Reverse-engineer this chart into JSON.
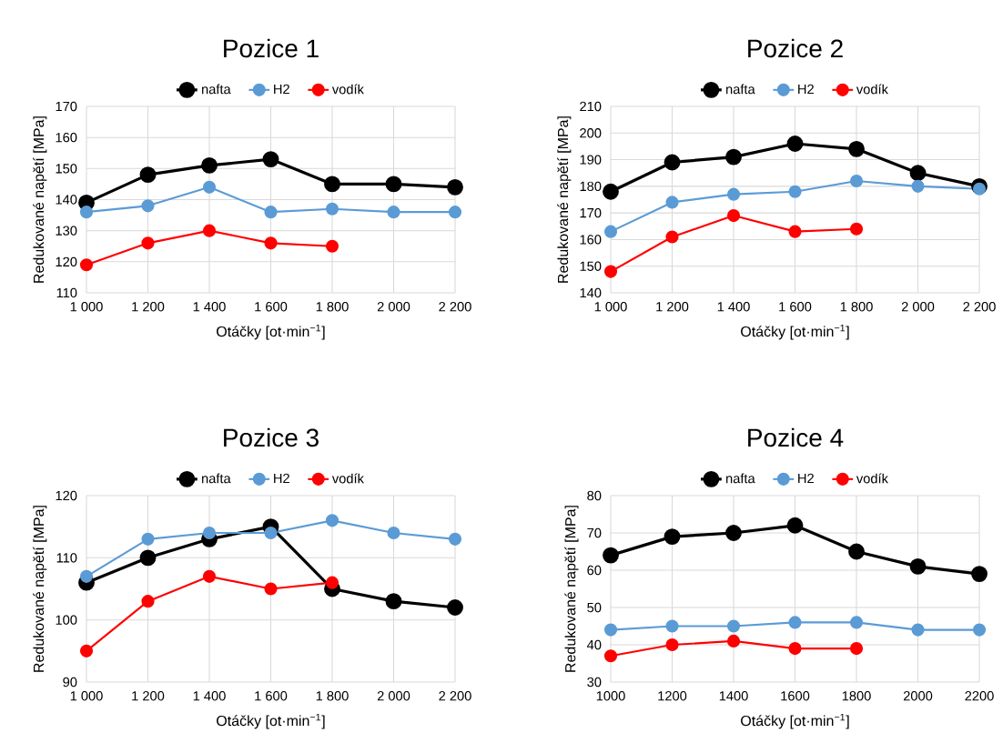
{
  "chart_data": [
    {
      "type": "line",
      "title": "Pozice 1",
      "xlabel": "Otáčky [ot·min$^{−1}$]",
      "ylabel": "Redukované napětí [MPa]",
      "x": [
        1000,
        1200,
        1400,
        1600,
        1800,
        2000,
        2200
      ],
      "xlim": [
        1000,
        2200
      ],
      "xticks": [
        {
          "value": 1000,
          "label": "1 000"
        },
        {
          "value": 1200,
          "label": "1 200"
        },
        {
          "value": 1400,
          "label": "1 400"
        },
        {
          "value": 1600,
          "label": "1 600"
        },
        {
          "value": 1800,
          "label": "1 800"
        },
        {
          "value": 2000,
          "label": "2 000"
        },
        {
          "value": 2200,
          "label": "2 200"
        }
      ],
      "ylim": [
        110,
        170
      ],
      "yticks": [
        110,
        120,
        130,
        140,
        150,
        160,
        170
      ],
      "series": [
        {
          "name": "nafta",
          "color": "#000000",
          "values": [
            139,
            148,
            151,
            153,
            145,
            145,
            144
          ]
        },
        {
          "name": "H2",
          "color": "#5b9bd5",
          "values": [
            136,
            138,
            144,
            136,
            137,
            136,
            136
          ]
        },
        {
          "name": "vodík",
          "color": "#ff0000",
          "values": [
            119,
            126,
            130,
            126,
            125,
            null,
            null
          ]
        }
      ],
      "grid": true,
      "legend": "top",
      "marker": "circle",
      "line_style": "solid"
    },
    {
      "type": "line",
      "title": "Pozice 2",
      "xlabel": "Otáčky [ot·min$^{−1}$]",
      "ylabel": "Redukované napětí [MPa]",
      "x": [
        1000,
        1200,
        1400,
        1600,
        1800,
        2000,
        2200
      ],
      "xlim": [
        1000,
        2200
      ],
      "xticks": [
        {
          "value": 1000,
          "label": "1 000"
        },
        {
          "value": 1200,
          "label": "1 200"
        },
        {
          "value": 1400,
          "label": "1 400"
        },
        {
          "value": 1600,
          "label": "1 600"
        },
        {
          "value": 1800,
          "label": "1 800"
        },
        {
          "value": 2000,
          "label": "2 000"
        },
        {
          "value": 2200,
          "label": "2 200"
        }
      ],
      "ylim": [
        140,
        210
      ],
      "yticks": [
        140,
        150,
        160,
        170,
        180,
        190,
        200,
        210
      ],
      "series": [
        {
          "name": "nafta",
          "color": "#000000",
          "values": [
            178,
            189,
            191,
            196,
            194,
            185,
            180
          ]
        },
        {
          "name": "H2",
          "color": "#5b9bd5",
          "values": [
            163,
            174,
            177,
            178,
            182,
            180,
            179
          ]
        },
        {
          "name": "vodík",
          "color": "#ff0000",
          "values": [
            148,
            161,
            169,
            163,
            164,
            null,
            null
          ]
        }
      ],
      "grid": true,
      "legend": "top",
      "marker": "circle",
      "line_style": "solid"
    },
    {
      "type": "line",
      "title": "Pozice 3",
      "xlabel": "Otáčky [ot·min$^{−1}$]",
      "ylabel": "Redukované napětí [MPa]",
      "x": [
        1000,
        1200,
        1400,
        1600,
        1800,
        2000,
        2200
      ],
      "xlim": [
        1000,
        2200
      ],
      "xticks": [
        {
          "value": 1000,
          "label": "1 000"
        },
        {
          "value": 1200,
          "label": "1 200"
        },
        {
          "value": 1400,
          "label": "1 400"
        },
        {
          "value": 1600,
          "label": "1 600"
        },
        {
          "value": 1800,
          "label": "1 800"
        },
        {
          "value": 2000,
          "label": "2 000"
        },
        {
          "value": 2200,
          "label": "2 200"
        }
      ],
      "ylim": [
        90,
        120
      ],
      "yticks": [
        90,
        100,
        110,
        120
      ],
      "series": [
        {
          "name": "nafta",
          "color": "#000000",
          "values": [
            106,
            110,
            113,
            115,
            105,
            103,
            102
          ]
        },
        {
          "name": "H2",
          "color": "#5b9bd5",
          "values": [
            107,
            113,
            114,
            114,
            116,
            114,
            113
          ]
        },
        {
          "name": "vodík",
          "color": "#ff0000",
          "values": [
            95,
            103,
            107,
            105,
            106,
            null,
            null
          ]
        }
      ],
      "grid": true,
      "legend": "top",
      "marker": "circle",
      "line_style": "solid"
    },
    {
      "type": "line",
      "title": "Pozice 4",
      "xlabel": "Otáčky [ot·min$^{−1}$]",
      "ylabel": "Redukované napětí [MPa]",
      "x": [
        1000,
        1200,
        1400,
        1600,
        1800,
        2000,
        2200
      ],
      "xlim": [
        1000,
        2200
      ],
      "xticks": [
        1000,
        1200,
        1400,
        1600,
        1800,
        2000,
        2200
      ],
      "ylim": [
        30,
        80
      ],
      "yticks": [
        30,
        40,
        50,
        60,
        70,
        80
      ],
      "series": [
        {
          "name": "nafta",
          "color": "#000000",
          "values": [
            64,
            69,
            70,
            72,
            65,
            61,
            59
          ]
        },
        {
          "name": "H2",
          "color": "#5b9bd5",
          "values": [
            44,
            45,
            45,
            46,
            46,
            44,
            44
          ]
        },
        {
          "name": "vodík",
          "color": "#ff0000",
          "values": [
            37,
            40,
            41,
            39,
            39,
            null,
            null
          ]
        }
      ],
      "grid": true,
      "legend": "top",
      "marker": "circle",
      "line_style": "solid"
    }
  ]
}
